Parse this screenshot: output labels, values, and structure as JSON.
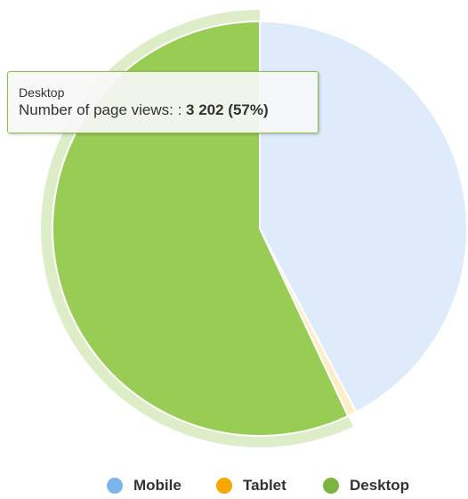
{
  "chart_data": {
    "type": "pie",
    "title": "",
    "series": [
      {
        "name": "Number of page views:",
        "slices": [
          {
            "label": "Mobile",
            "percent": 42.3,
            "color": "#7cb5ec",
            "faded_color": "#deebfa"
          },
          {
            "label": "Tablet",
            "percent": 0.7,
            "color": "#f7a800",
            "faded_color": "#fdeec9"
          },
          {
            "label": "Desktop",
            "percent": 57,
            "value": "3 202",
            "color": "#7cb342",
            "faded_color": "#dcedc8",
            "highlight_color": "#99cc55",
            "hovered": true
          }
        ]
      }
    ],
    "legend": {
      "position": "bottom-center",
      "items": [
        {
          "label": "Mobile",
          "color": "#7cb5ec"
        },
        {
          "label": "Tablet",
          "color": "#f7a800"
        },
        {
          "label": "Desktop",
          "color": "#7cb342"
        }
      ]
    }
  },
  "tooltip": {
    "title": "Desktop",
    "series_label": "Number of page views: :",
    "value": "3 202 (57%)"
  }
}
